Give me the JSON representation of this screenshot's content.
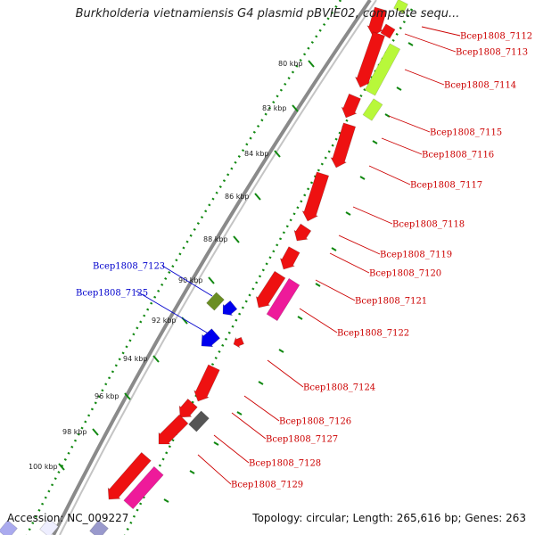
{
  "title": "Burkholderia vietnamiensis G4 plasmid pBVIE02, complete sequ...",
  "footer": {
    "accession": "Accession: NC_009227",
    "topology": "Topology: circular; Length: 265,616 bp; Genes: 263"
  },
  "colors": {
    "cds_forward": "#ee1111",
    "cds_highlight_magenta": "#ee1a9a",
    "cds_highlight_green": "#b8f83a",
    "cds_olive": "#6b8e23",
    "cds_blue": "#0000ee",
    "cds_gray": "#555555",
    "backbone": "#888888",
    "ticks": "#118811",
    "label_red": "#cc0000",
    "label_blue": "#0000cc"
  },
  "ticks": [
    "80 kbp",
    "82 kbp",
    "84 kbp",
    "86 kbp",
    "88 kbp",
    "90 kbp",
    "92 kbp",
    "94 kbp",
    "96 kbp",
    "98 kbp",
    "100 kbp"
  ],
  "genes_right": [
    "Bcep1808_7112",
    "Bcep1808_7113",
    "Bcep1808_7114",
    "Bcep1808_7115",
    "Bcep1808_7116",
    "Bcep1808_7117",
    "Bcep1808_7118",
    "Bcep1808_7119",
    "Bcep1808_7120",
    "Bcep1808_7121",
    "Bcep1808_7122",
    "Bcep1808_7124",
    "Bcep1808_7126",
    "Bcep1808_7127",
    "Bcep1808_7128",
    "Bcep1808_7129"
  ],
  "genes_left": [
    "Bcep1808_7123",
    "Bcep1808_7125"
  ]
}
